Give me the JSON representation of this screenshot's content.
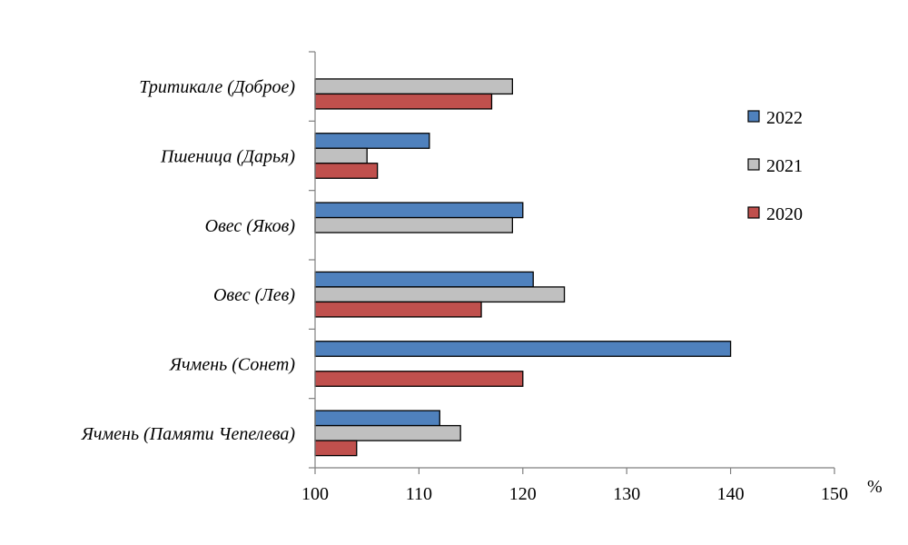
{
  "chart_data": {
    "type": "bar",
    "orientation": "horizontal",
    "categories": [
      "Тритикале (Доброе)",
      "Пшеница (Дарья)",
      "Овес (Яков)",
      "Овес (Лев)",
      "Ячмень (Сонет)",
      "Ячмень (Памяти Чепелева)"
    ],
    "series": [
      {
        "name": "2022",
        "color": "#4f81bd",
        "values": [
          null,
          111,
          120,
          121,
          140,
          112
        ]
      },
      {
        "name": "2021",
        "color": "#c0c0c0",
        "values": [
          119,
          105,
          119,
          124,
          null,
          114
        ]
      },
      {
        "name": "2020",
        "color": "#c0504d",
        "values": [
          117,
          106,
          null,
          116,
          120,
          104
        ]
      }
    ],
    "xlim": [
      100,
      150
    ],
    "xticks": [
      100,
      110,
      120,
      130,
      140,
      150
    ],
    "xunit": "%",
    "legend_placement": "right",
    "grid": false
  }
}
